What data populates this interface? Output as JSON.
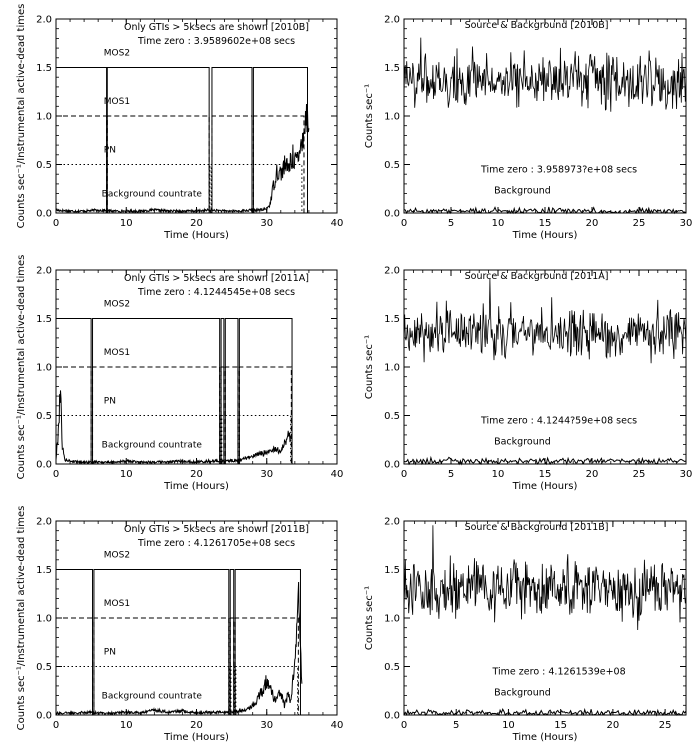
{
  "chart_data": [
    {
      "type": "line",
      "panel": "left",
      "title": "Only GTIs > 5ksecs are shown [2010B]",
      "subtitle": "Time zero : 3.9589602e+08 secs",
      "xlabel": "Time (Hours)",
      "ylabel": "Counts sec⁻¹/Instrumental active-dead times",
      "xlim": [
        0,
        40
      ],
      "ylim": [
        0,
        2.0
      ],
      "xticks": [
        "0",
        "10",
        "20",
        "30",
        "40"
      ],
      "yticks": [
        "0.0",
        "0.5",
        "1.0",
        "1.5",
        "2.0"
      ],
      "levels": [
        {
          "name": "MOS2",
          "y": 1.5,
          "style": "solid"
        },
        {
          "name": "MOS1",
          "y": 1.0,
          "style": "dashed"
        },
        {
          "name": "PN",
          "y": 0.5,
          "style": "dotted"
        },
        {
          "name": "Background countrate",
          "y": 0.2,
          "style": "label"
        }
      ],
      "gtis": {
        "MOS2": [
          [
            0,
            7.2
          ],
          [
            7.3,
            21.8
          ],
          [
            22.2,
            27.9
          ],
          [
            28.1,
            35.8
          ]
        ],
        "MOS1": [
          [
            0,
            7.2
          ],
          [
            7.3,
            21.8
          ],
          [
            22.2,
            27.9
          ],
          [
            28.1,
            35.3
          ]
        ],
        "PN": [
          [
            0,
            21.9
          ],
          [
            22.1,
            35.0
          ]
        ]
      },
      "background": {
        "x": [
          0,
          2,
          4,
          6,
          8,
          10,
          12,
          14,
          16,
          18,
          20,
          22,
          24,
          26,
          28,
          29,
          30,
          30.5,
          31,
          31.5,
          32,
          32.5,
          33,
          33.5,
          34,
          34.5,
          35,
          35.5,
          36
        ],
        "y": [
          0.03,
          0.02,
          0.02,
          0.03,
          0.02,
          0.02,
          0.02,
          0.03,
          0.02,
          0.02,
          0.02,
          0.03,
          0.02,
          0.02,
          0.03,
          0.03,
          0.04,
          0.1,
          0.3,
          0.45,
          0.4,
          0.5,
          0.45,
          0.55,
          0.6,
          0.5,
          0.8,
          0.95,
          1.05
        ]
      }
    },
    {
      "type": "line",
      "panel": "right",
      "title": "Source & Background [2010B]",
      "subtitle": "Time zero : 3.958973?e+08 secs",
      "xlabel": "Time (Hours)",
      "ylabel": "Counts sec⁻¹",
      "xlim": [
        0,
        30
      ],
      "ylim": [
        0,
        2.0
      ],
      "xticks": [
        "0",
        "5",
        "10",
        "15",
        "20",
        "25",
        "30"
      ],
      "yticks": [
        "0.0",
        "0.5",
        "1.0",
        "1.5",
        "2.0"
      ],
      "series": [
        {
          "name": "Source",
          "mean": 1.38,
          "spread": 0.17,
          "points": 300
        },
        {
          "name": "Background",
          "mean": 0.02,
          "spread": 0.02,
          "points": 120
        }
      ]
    },
    {
      "type": "line",
      "panel": "left",
      "title": "Only GTIs > 5ksecs are shown [2011A]",
      "subtitle": "Time zero : 4.1244545e+08 secs",
      "xlabel": "Time (Hours)",
      "ylabel": "Counts sec⁻¹/Instrumental active-dead times",
      "xlim": [
        0,
        40
      ],
      "ylim": [
        0,
        2.0
      ],
      "xticks": [
        "0",
        "10",
        "20",
        "30",
        "40"
      ],
      "yticks": [
        "0.0",
        "0.5",
        "1.0",
        "1.5",
        "2.0"
      ],
      "levels": [
        {
          "name": "MOS2",
          "y": 1.5,
          "style": "solid"
        },
        {
          "name": "MOS1",
          "y": 1.0,
          "style": "dashed"
        },
        {
          "name": "PN",
          "y": 0.5,
          "style": "dotted"
        },
        {
          "name": "Background countrate",
          "y": 0.2,
          "style": "label"
        }
      ],
      "gtis": {
        "MOS2": [
          [
            0,
            5.0
          ],
          [
            5.2,
            23.3
          ],
          [
            23.5,
            23.9
          ],
          [
            24.1,
            25.9
          ],
          [
            26.1,
            33.6
          ]
        ],
        "MOS1": [
          [
            0,
            5.0
          ],
          [
            5.2,
            23.3
          ],
          [
            23.5,
            23.9
          ],
          [
            24.1,
            25.9
          ],
          [
            26.1,
            33.5
          ]
        ],
        "PN": [
          [
            0,
            23.4
          ],
          [
            23.6,
            25.9
          ],
          [
            26.1,
            33.4
          ]
        ]
      },
      "background": {
        "x": [
          0,
          0.3,
          0.6,
          0.9,
          1.2,
          2,
          4,
          6,
          8,
          10,
          12,
          14,
          16,
          18,
          20,
          22,
          24,
          26,
          27,
          28,
          29,
          30,
          31,
          32,
          32.5,
          33,
          33.5
        ],
        "y": [
          0.05,
          0.3,
          0.8,
          0.2,
          0.05,
          0.03,
          0.02,
          0.02,
          0.02,
          0.03,
          0.02,
          0.02,
          0.02,
          0.03,
          0.02,
          0.03,
          0.03,
          0.04,
          0.06,
          0.08,
          0.1,
          0.12,
          0.14,
          0.15,
          0.2,
          0.3,
          0.25
        ]
      }
    },
    {
      "type": "line",
      "panel": "right",
      "title": "Source & Background [2011A]",
      "subtitle": "Time zero : 4.1244?59e+08 secs",
      "xlabel": "Time (Hours)",
      "ylabel": "Counts sec⁻¹",
      "xlim": [
        0,
        30
      ],
      "ylim": [
        0,
        2.0
      ],
      "xticks": [
        "0",
        "5",
        "10",
        "15",
        "20",
        "25",
        "30"
      ],
      "yticks": [
        "0.0",
        "0.5",
        "1.0",
        "1.5",
        "2.0"
      ],
      "series": [
        {
          "name": "Source",
          "mean": 1.35,
          "spread": 0.16,
          "points": 300
        },
        {
          "name": "Background",
          "mean": 0.03,
          "spread": 0.02,
          "points": 120
        }
      ]
    },
    {
      "type": "line",
      "panel": "left",
      "title": "Only GTIs > 5ksecs are shown [2011B]",
      "subtitle": "Time zero : 4.1261705e+08 secs",
      "xlabel": "Time (Hours)",
      "ylabel": "Counts sec⁻¹/Instrumental active-dead times",
      "xlim": [
        0,
        40
      ],
      "ylim": [
        0,
        2.0
      ],
      "xticks": [
        "0",
        "10",
        "20",
        "30",
        "40"
      ],
      "yticks": [
        "0.0",
        "0.5",
        "1.0",
        "1.5",
        "2.0"
      ],
      "levels": [
        {
          "name": "MOS2",
          "y": 1.5,
          "style": "solid"
        },
        {
          "name": "MOS1",
          "y": 1.0,
          "style": "dashed"
        },
        {
          "name": "PN",
          "y": 0.5,
          "style": "dotted"
        },
        {
          "name": "Background countrate",
          "y": 0.2,
          "style": "label"
        }
      ],
      "gtis": {
        "MOS2": [
          [
            0,
            5.2
          ],
          [
            5.4,
            24.6
          ],
          [
            24.8,
            25.3
          ],
          [
            25.5,
            34.8
          ]
        ],
        "MOS1": [
          [
            0,
            5.2
          ],
          [
            5.4,
            24.6
          ],
          [
            24.8,
            25.3
          ],
          [
            25.5,
            34.5
          ]
        ],
        "PN": [
          [
            0,
            24.7
          ],
          [
            24.9,
            25.4
          ],
          [
            25.6,
            34.4
          ]
        ]
      },
      "background": {
        "x": [
          0,
          2,
          4,
          6,
          8,
          10,
          12,
          14,
          16,
          18,
          20,
          22,
          24,
          26,
          27,
          28,
          29,
          30,
          30.5,
          31,
          31.5,
          32,
          32.5,
          33,
          33.5,
          34,
          34.5,
          35
        ],
        "y": [
          0.02,
          0.02,
          0.03,
          0.02,
          0.02,
          0.03,
          0.02,
          0.05,
          0.03,
          0.04,
          0.02,
          0.03,
          0.03,
          0.04,
          0.05,
          0.1,
          0.2,
          0.35,
          0.3,
          0.15,
          0.2,
          0.25,
          0.1,
          0.2,
          0.15,
          0.6,
          1.2,
          0.3
        ]
      }
    },
    {
      "type": "line",
      "panel": "right",
      "title": "Source & Background [2011B]",
      "subtitle": "Time zero : 4.1261539e+08",
      "xlabel": "Time (Hours)",
      "ylabel": "Counts sec⁻¹",
      "xlim": [
        0,
        27
      ],
      "ylim": [
        0,
        2.0
      ],
      "xticks": [
        "0",
        "5",
        "10",
        "15",
        "20",
        "25"
      ],
      "yticks": [
        "0.0",
        "0.5",
        "1.0",
        "1.5",
        "2.0"
      ],
      "series": [
        {
          "name": "Source",
          "mean": 1.3,
          "spread": 0.18,
          "points": 300
        },
        {
          "name": "Background",
          "mean": 0.02,
          "spread": 0.02,
          "points": 120
        }
      ]
    }
  ]
}
